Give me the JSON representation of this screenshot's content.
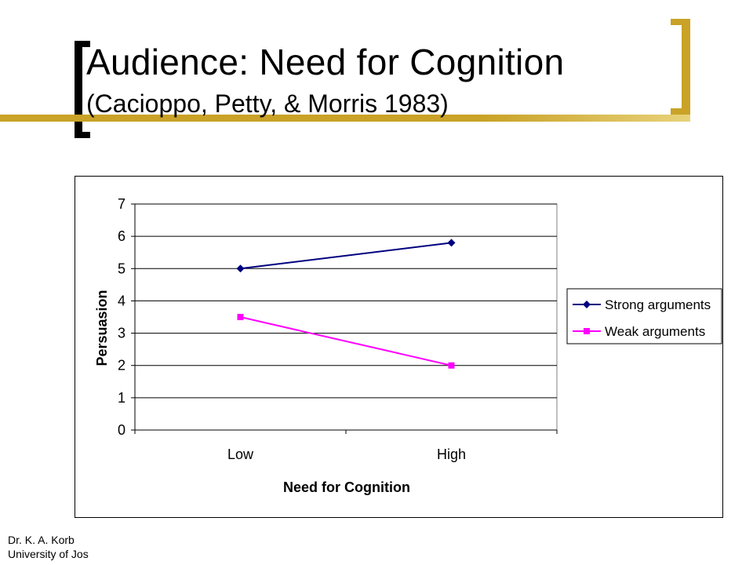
{
  "slide": {
    "title": "Audience: Need for Cognition",
    "subtitle": "(Cacioppo, Petty, & Morris 1983)",
    "footer_line1": "Dr. K. A. Korb",
    "footer_line2": "University of Jos",
    "accent_color": "#c9a227"
  },
  "chart_data": {
    "type": "line",
    "categories": [
      "Low",
      "High"
    ],
    "series": [
      {
        "name": "Strong arguments",
        "values": [
          5.0,
          5.8
        ],
        "color": "#000080",
        "marker": "diamond"
      },
      {
        "name": "Weak arguments",
        "values": [
          3.5,
          2.0
        ],
        "color": "#ff00ff",
        "marker": "square"
      }
    ],
    "xlabel": "Need for Cognition",
    "ylabel": "Persuasion",
    "ylim": [
      0,
      7
    ],
    "yticks": [
      0,
      1,
      2,
      3,
      4,
      5,
      6,
      7
    ],
    "grid": true,
    "legend_position": "right"
  }
}
